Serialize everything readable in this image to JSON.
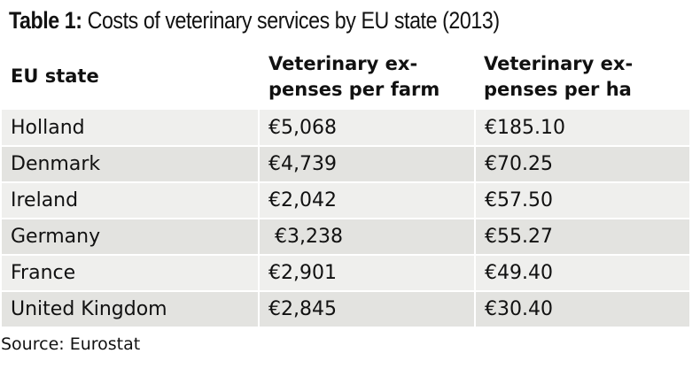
{
  "title": {
    "bold": "Table 1:",
    "rest": " Costs of veterinary services by EU state (2013)"
  },
  "headers": {
    "col1": "EU state",
    "col2_line1": "Veterinary ex-",
    "col2_line2": "penses per farm",
    "col3_line1": "Veterinary ex-",
    "col3_line2": "penses per ha"
  },
  "rows": [
    {
      "state": "Holland",
      "per_farm": "€5,068",
      "per_ha": "€185.10"
    },
    {
      "state": "Denmark",
      "per_farm": "€4,739",
      "per_ha": "€70.25"
    },
    {
      "state": "Ireland",
      "per_farm": "€2,042",
      "per_ha": "€57.50"
    },
    {
      "state": "Germany",
      "per_farm": " €3,238",
      "per_ha": "€55.27"
    },
    {
      "state": "France",
      "per_farm": "€2,901",
      "per_ha": "€49.40"
    },
    {
      "state": "United Kingdom",
      "per_farm": "€2,845",
      "per_ha": "€30.40"
    }
  ],
  "source": "Source: Eurostat",
  "colors": {
    "row_light": "#efefed",
    "row_dark": "#e3e3e0"
  }
}
